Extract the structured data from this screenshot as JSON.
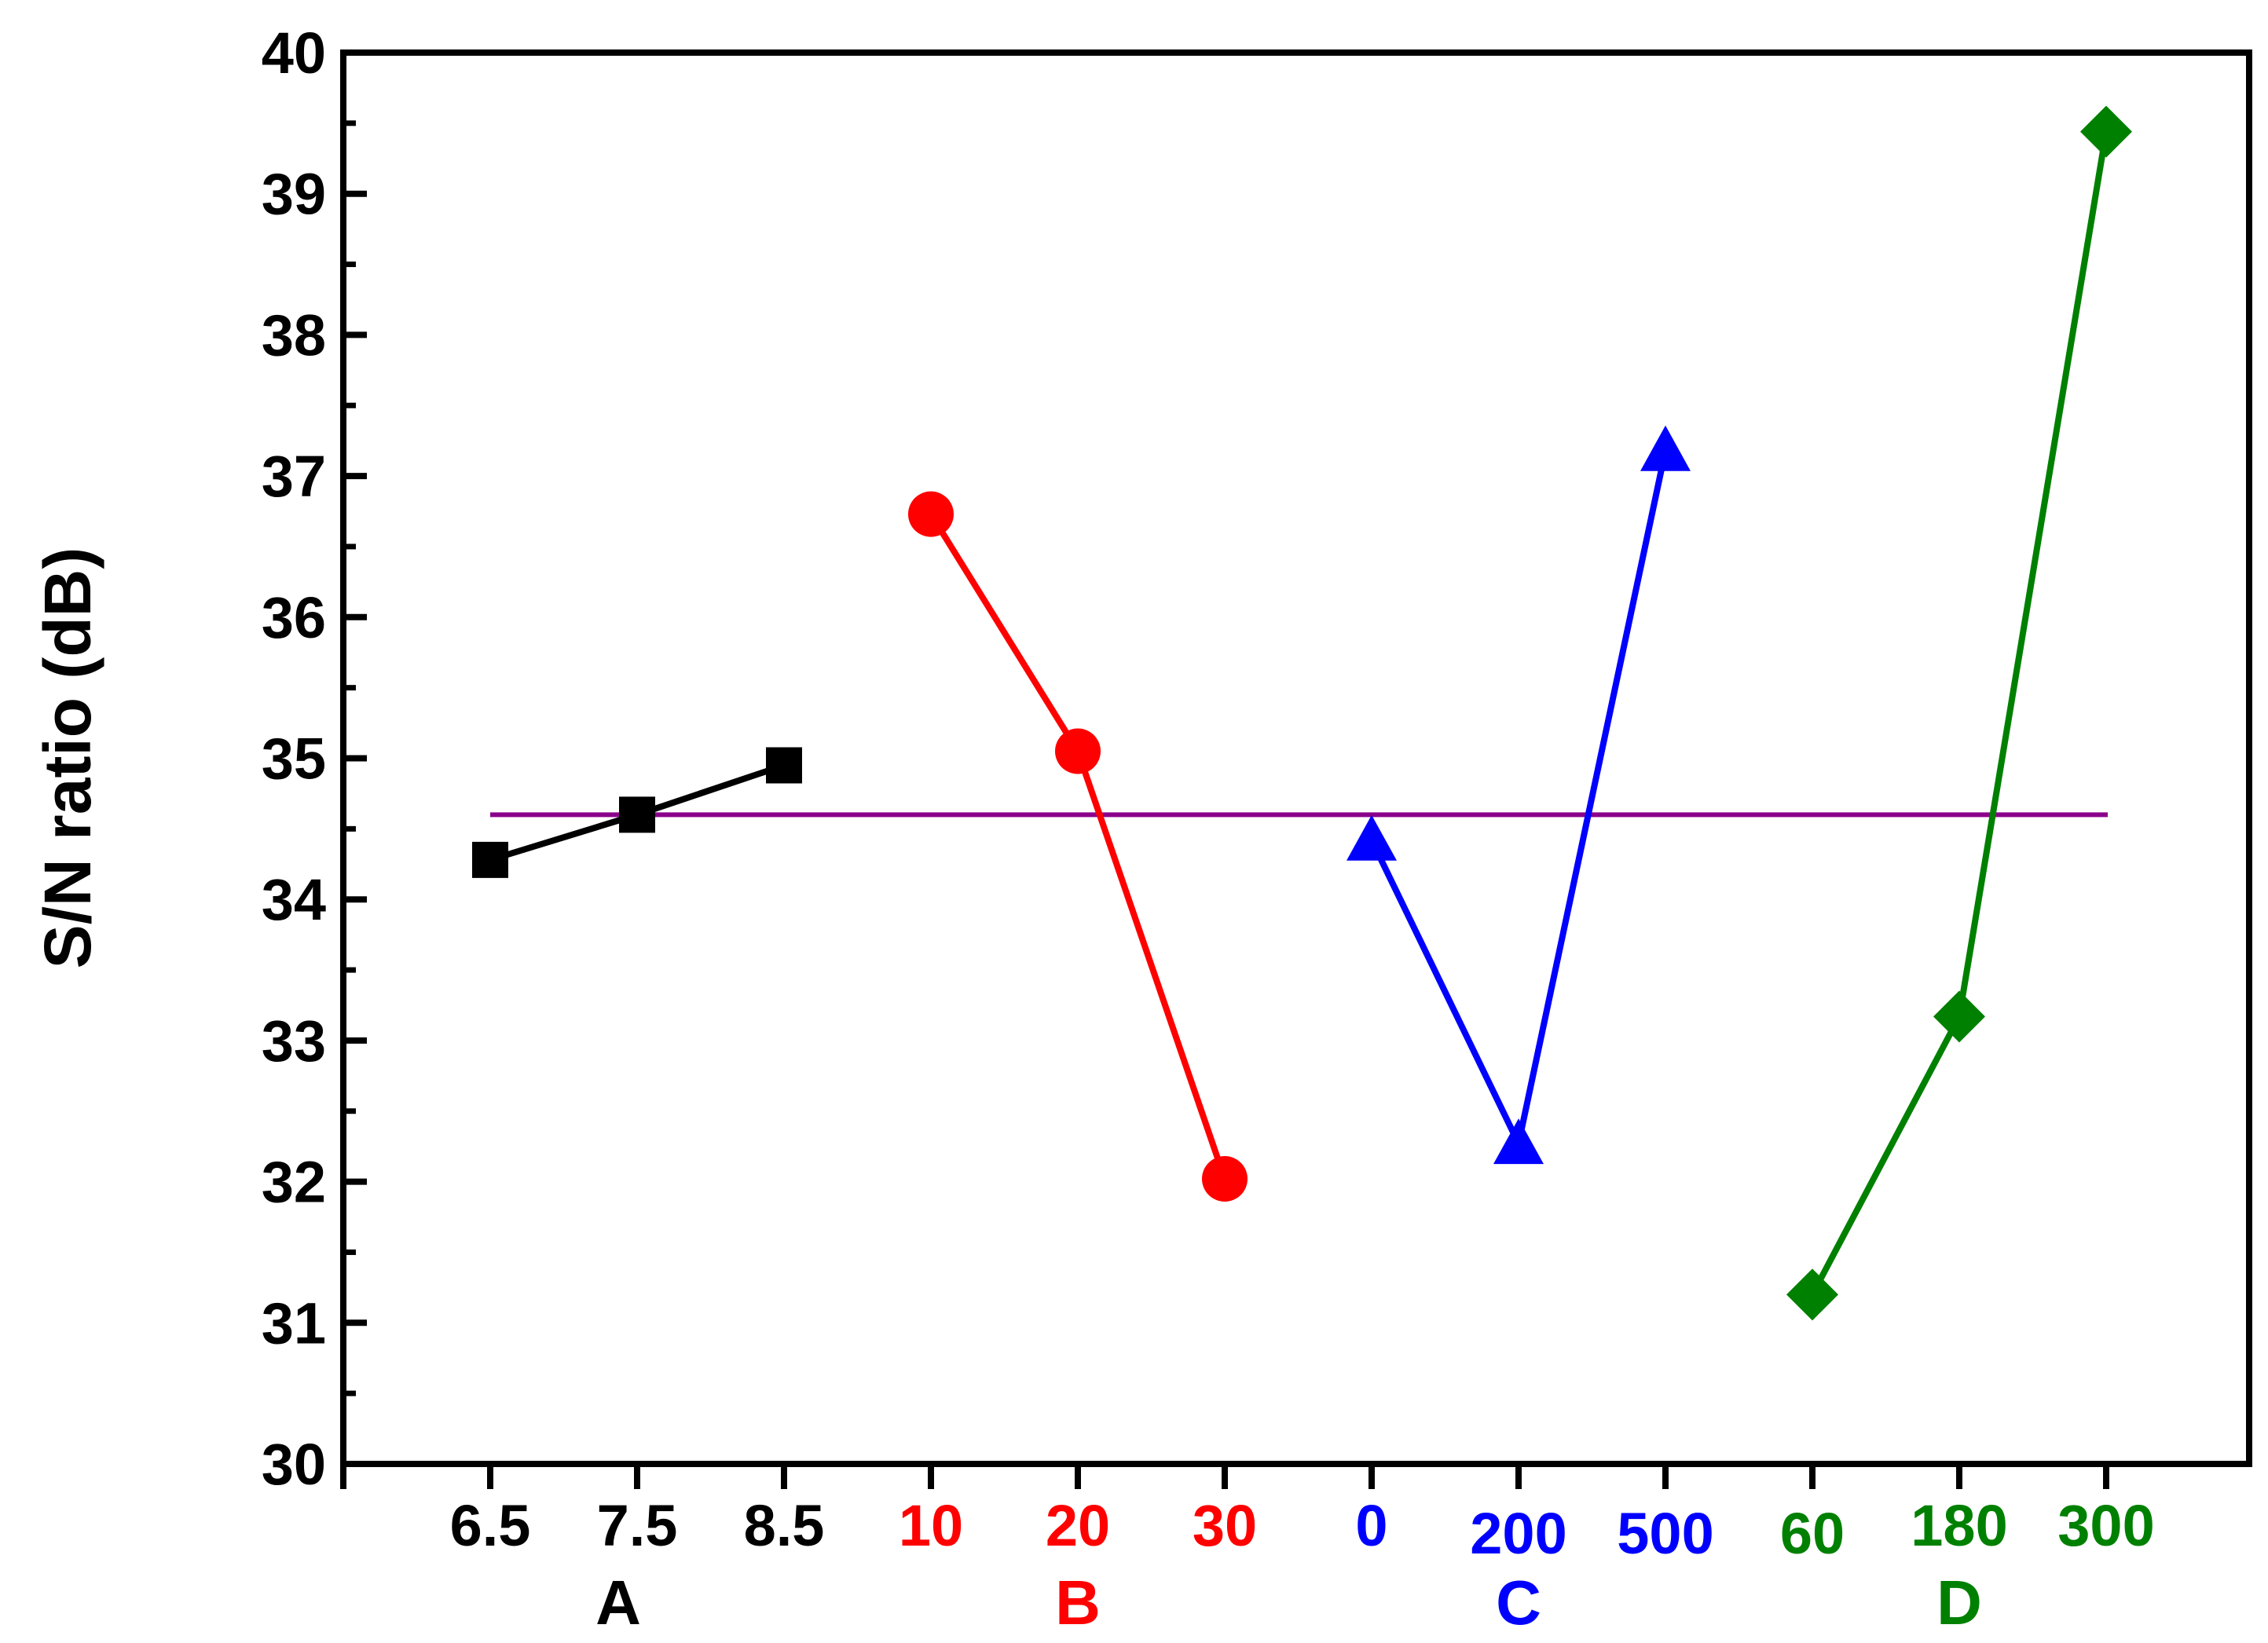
{
  "chart_data": {
    "type": "line",
    "xlabel": "",
    "ylabel": "S/N ratio (dB)",
    "ylim": [
      30,
      40
    ],
    "y_ticks": [
      "30",
      "31",
      "32",
      "33",
      "34",
      "35",
      "36",
      "37",
      "38",
      "39",
      "40"
    ],
    "grid": false,
    "legend": "none",
    "mean_line": {
      "value": 34.6,
      "color": "#8b008b"
    },
    "series": [
      {
        "name": "A",
        "color": "#000000",
        "marker": "square",
        "levels": [
          "6.5",
          "7.5",
          "8.5"
        ],
        "values": [
          34.28,
          34.6,
          34.95
        ]
      },
      {
        "name": "B",
        "color": "#ff0000",
        "marker": "circle",
        "levels": [
          "10",
          "20",
          "30"
        ],
        "values": [
          36.73,
          35.05,
          32.02
        ]
      },
      {
        "name": "C",
        "color": "#0000ff",
        "marker": "triangle",
        "levels": [
          "0",
          "200",
          "500"
        ],
        "values": [
          34.42,
          32.27,
          37.18
        ]
      },
      {
        "name": "D",
        "color": "#008000",
        "marker": "diamond",
        "levels": [
          "60",
          "180",
          "300"
        ],
        "values": [
          31.2,
          33.17,
          39.44
        ]
      }
    ]
  }
}
